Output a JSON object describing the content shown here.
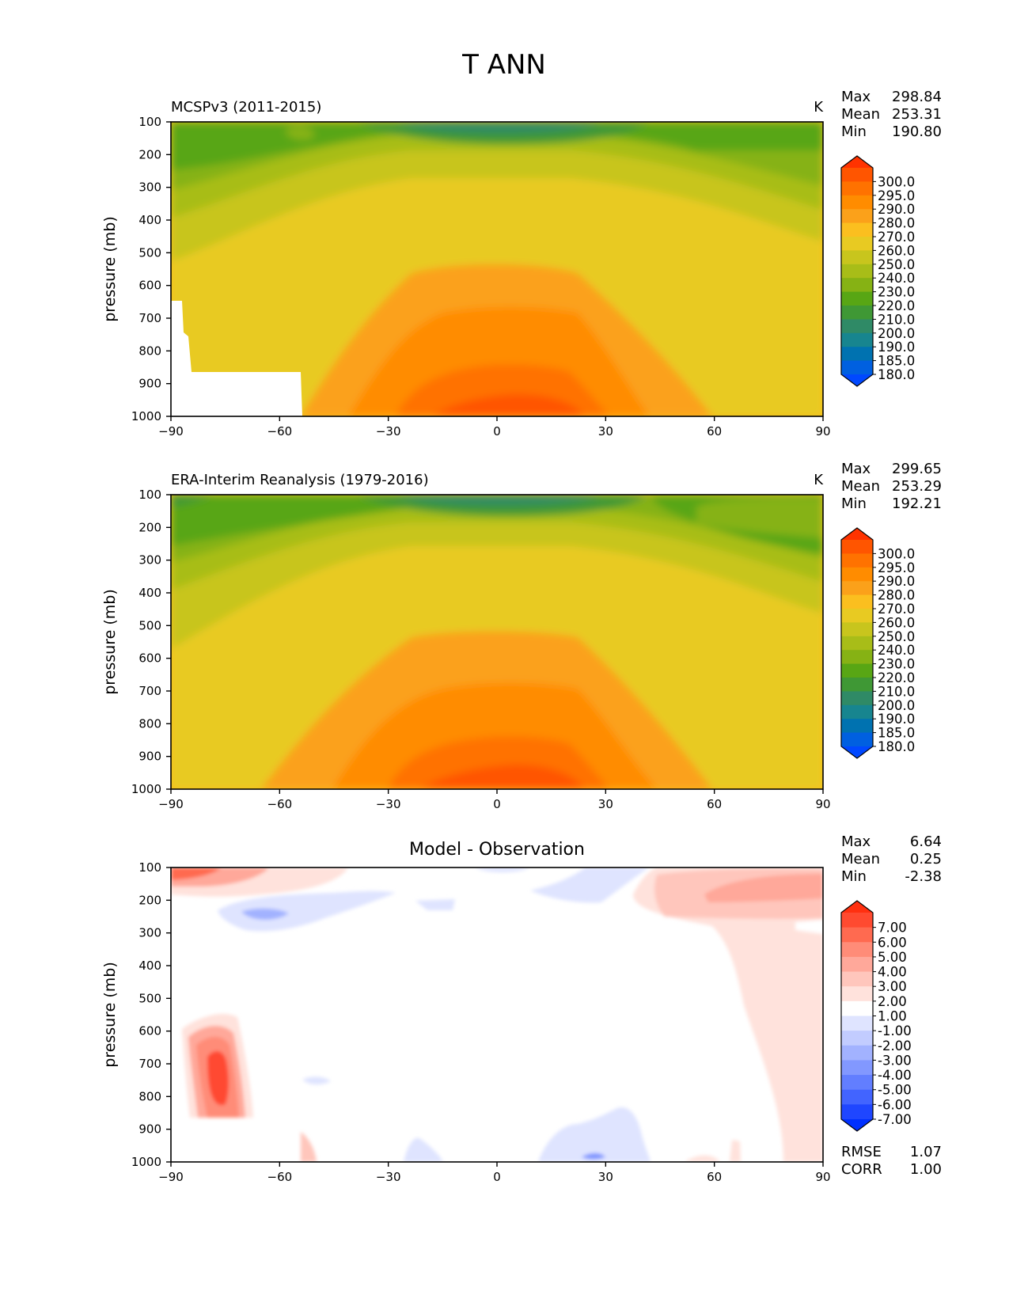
{
  "figure_title": "T ANN",
  "chart_data": [
    {
      "type": "heatmap",
      "title": "MCSPv3 (2011-2015)",
      "units": "K",
      "xlabel": "",
      "ylabel": "pressure (mb)",
      "x_ticks": [
        "−90",
        "−60",
        "−30",
        "0",
        "30",
        "60",
        "90"
      ],
      "y_ticks": [
        "100",
        "200",
        "300",
        "400",
        "500",
        "600",
        "700",
        "800",
        "900",
        "1000"
      ],
      "xlim": [
        -90,
        90
      ],
      "ylim": [
        1000,
        100
      ],
      "stats": [
        {
          "label": "Max",
          "value": "298.84"
        },
        {
          "label": "Mean",
          "value": "253.31"
        },
        {
          "label": "Min",
          "value": "190.80"
        }
      ],
      "colorbar": {
        "labels": [
          "300.0",
          "295.0",
          "290.0",
          "280.0",
          "270.0",
          "260.0",
          "250.0",
          "240.0",
          "230.0",
          "220.0",
          "210.0",
          "200.0",
          "190.0",
          "185.0",
          "180.0"
        ],
        "colors": [
          "#ff3300",
          "#ff5500",
          "#ff7200",
          "#ff8c00",
          "#fba11a",
          "#fbbf1f",
          "#e8ca22",
          "#c8c51d",
          "#a8bd18",
          "#86b214",
          "#58a614",
          "#3f9835",
          "#2f8a66",
          "#17858f",
          "#0072b0",
          "#0060e0",
          "#0048ff"
        ]
      }
    },
    {
      "type": "heatmap",
      "title": "ERA-Interim Reanalysis (1979-2016)",
      "units": "K",
      "xlabel": "",
      "ylabel": "pressure (mb)",
      "x_ticks": [
        "−90",
        "−60",
        "−30",
        "0",
        "30",
        "60",
        "90"
      ],
      "y_ticks": [
        "100",
        "200",
        "300",
        "400",
        "500",
        "600",
        "700",
        "800",
        "900",
        "1000"
      ],
      "xlim": [
        -90,
        90
      ],
      "ylim": [
        1000,
        100
      ],
      "stats": [
        {
          "label": "Max",
          "value": "299.65"
        },
        {
          "label": "Mean",
          "value": "253.29"
        },
        {
          "label": "Min",
          "value": "192.21"
        }
      ],
      "colorbar": {
        "labels": [
          "300.0",
          "295.0",
          "290.0",
          "280.0",
          "270.0",
          "260.0",
          "250.0",
          "240.0",
          "230.0",
          "220.0",
          "210.0",
          "200.0",
          "190.0",
          "185.0",
          "180.0"
        ],
        "colors": [
          "#ff3300",
          "#ff5500",
          "#ff7200",
          "#ff8c00",
          "#fba11a",
          "#fbbf1f",
          "#e8ca22",
          "#c8c51d",
          "#a8bd18",
          "#86b214",
          "#58a614",
          "#3f9835",
          "#2f8a66",
          "#17858f",
          "#0072b0",
          "#0060e0",
          "#0048ff"
        ]
      }
    },
    {
      "type": "heatmap",
      "title": "Model - Observation",
      "units": "",
      "xlabel": "",
      "ylabel": "pressure (mb)",
      "x_ticks": [
        "−90",
        "−60",
        "−30",
        "0",
        "30",
        "60",
        "90"
      ],
      "y_ticks": [
        "100",
        "200",
        "300",
        "400",
        "500",
        "600",
        "700",
        "800",
        "900",
        "1000"
      ],
      "xlim": [
        -90,
        90
      ],
      "ylim": [
        1000,
        100
      ],
      "stats": [
        {
          "label": "Max",
          "value": "6.64"
        },
        {
          "label": "Mean",
          "value": "0.25"
        },
        {
          "label": "Min",
          "value": "-2.38"
        }
      ],
      "extra_stats": [
        {
          "label": "RMSE",
          "value": "1.07"
        },
        {
          "label": "CORR",
          "value": "1.00"
        }
      ],
      "colorbar": {
        "labels": [
          "7.00",
          "6.00",
          "5.00",
          "4.00",
          "3.00",
          "2.00",
          "1.00",
          "-1.00",
          "-2.00",
          "-3.00",
          "-4.00",
          "-5.00",
          "-6.00",
          "-7.00"
        ],
        "colors": [
          "#ff3010",
          "#ff4a30",
          "#ff6a50",
          "#ff8c78",
          "#ffa89a",
          "#ffc6bc",
          "#ffe2dc",
          "#ffffff",
          "#dfe4ff",
          "#c2ccff",
          "#a2b2ff",
          "#8298ff",
          "#627eff",
          "#4264ff",
          "#1f46ff",
          "#0030ff"
        ]
      }
    }
  ]
}
